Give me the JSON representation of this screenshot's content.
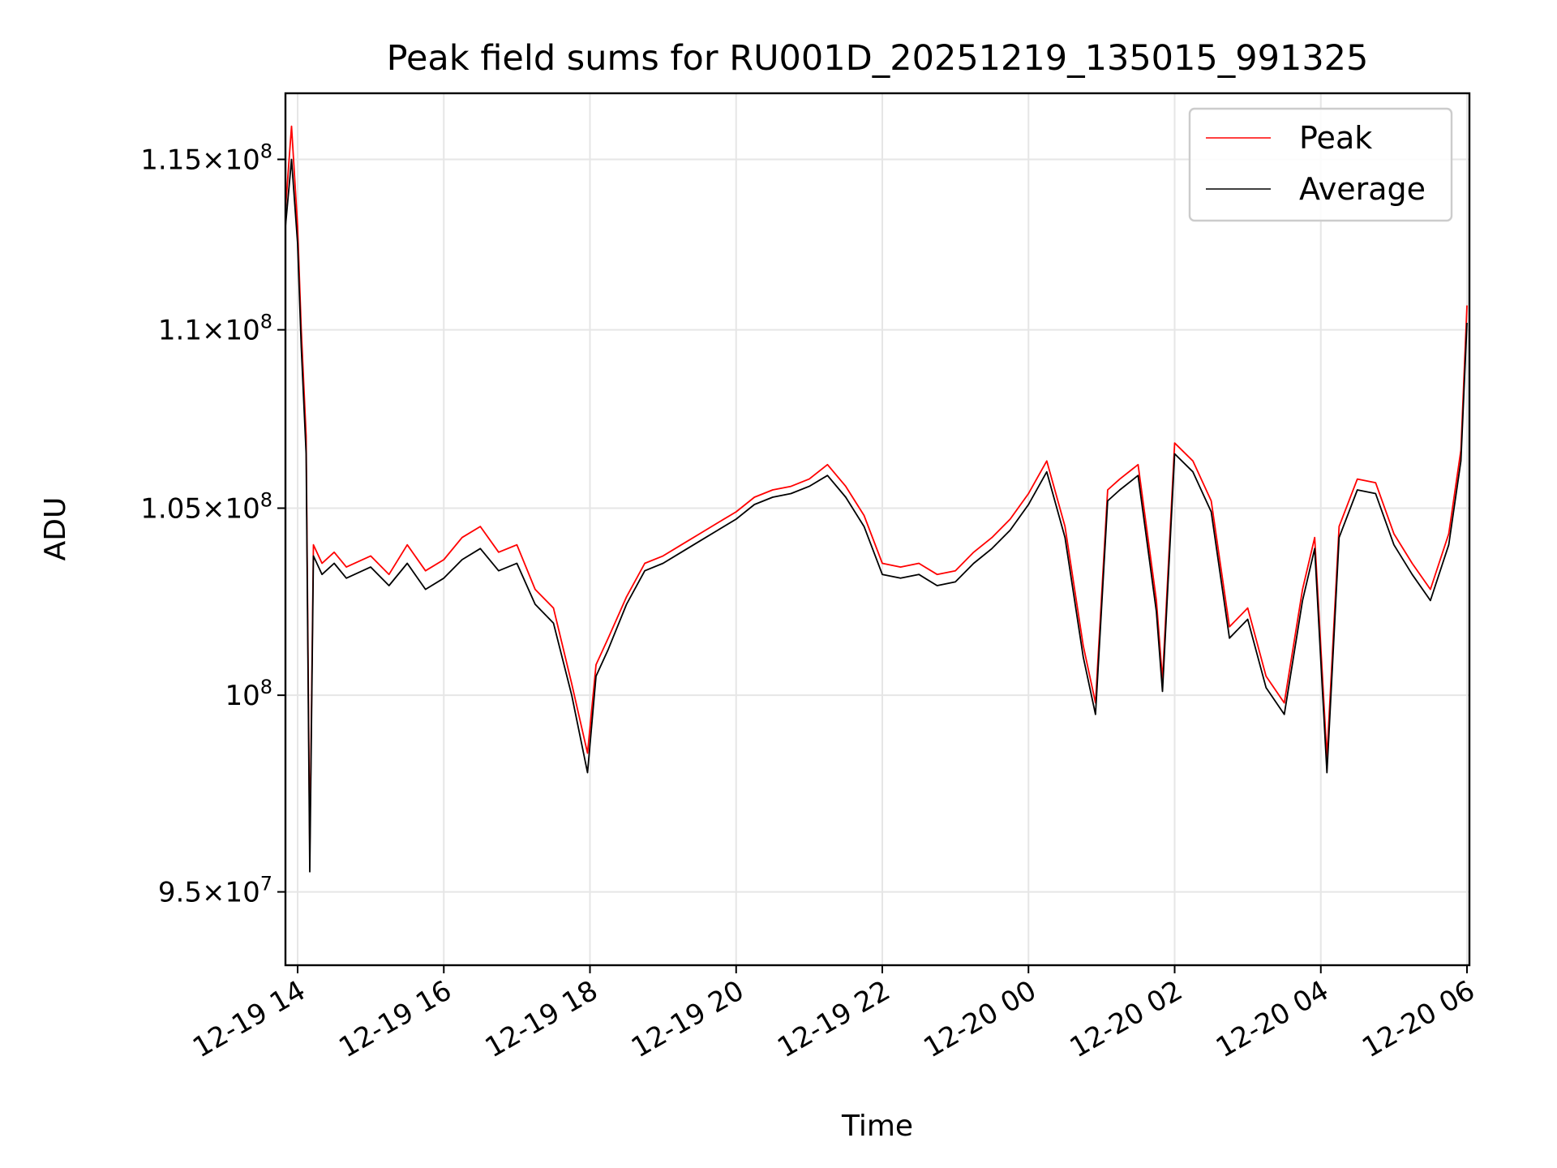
{
  "chart_data": {
    "type": "line",
    "title": "Peak field sums for RU001D_20251219_135015_991325",
    "xlabel": "Time",
    "ylabel": "ADU",
    "x_scale": "time",
    "y_scale": "log",
    "xlim": [
      "2025-12-19 13:50",
      "2025-12-20 06:02"
    ],
    "ylim": [
      93200000,
      117000000
    ],
    "grid": true,
    "legend_position": "top-right",
    "x_ticks": [
      {
        "value": "2025-12-19 14:00",
        "label": "12-19 14"
      },
      {
        "value": "2025-12-19 16:00",
        "label": "12-19 16"
      },
      {
        "value": "2025-12-19 18:00",
        "label": "12-19 18"
      },
      {
        "value": "2025-12-19 20:00",
        "label": "12-19 20"
      },
      {
        "value": "2025-12-19 22:00",
        "label": "12-19 22"
      },
      {
        "value": "2025-12-20 00:00",
        "label": "12-20 00"
      },
      {
        "value": "2025-12-20 02:00",
        "label": "12-20 02"
      },
      {
        "value": "2025-12-20 04:00",
        "label": "12-20 04"
      },
      {
        "value": "2025-12-20 06:00",
        "label": "12-20 06"
      }
    ],
    "y_ticks": [
      {
        "value": 95000000,
        "mant": "9.5",
        "exp": "7"
      },
      {
        "value": 100000000,
        "mant": "",
        "exp": "8"
      },
      {
        "value": 105000000,
        "mant": "1.05",
        "exp": "8"
      },
      {
        "value": 110000000,
        "mant": "1.1",
        "exp": "8"
      },
      {
        "value": 115000000,
        "mant": "1.15",
        "exp": "8"
      }
    ],
    "x": [
      "2025-12-19 13:50",
      "2025-12-19 13:55",
      "2025-12-19 14:00",
      "2025-12-19 14:03",
      "2025-12-19 14:07",
      "2025-12-19 14:10",
      "2025-12-19 14:13",
      "2025-12-19 14:20",
      "2025-12-19 14:30",
      "2025-12-19 14:40",
      "2025-12-19 15:00",
      "2025-12-19 15:15",
      "2025-12-19 15:30",
      "2025-12-19 15:45",
      "2025-12-19 16:00",
      "2025-12-19 16:15",
      "2025-12-19 16:30",
      "2025-12-19 16:45",
      "2025-12-19 17:00",
      "2025-12-19 17:15",
      "2025-12-19 17:30",
      "2025-12-19 17:45",
      "2025-12-19 17:58",
      "2025-12-19 18:05",
      "2025-12-19 18:15",
      "2025-12-19 18:30",
      "2025-12-19 18:45",
      "2025-12-19 19:00",
      "2025-12-19 19:15",
      "2025-12-19 19:30",
      "2025-12-19 19:45",
      "2025-12-19 20:00",
      "2025-12-19 20:15",
      "2025-12-19 20:30",
      "2025-12-19 20:45",
      "2025-12-19 21:00",
      "2025-12-19 21:15",
      "2025-12-19 21:30",
      "2025-12-19 21:45",
      "2025-12-19 22:00",
      "2025-12-19 22:15",
      "2025-12-19 22:30",
      "2025-12-19 22:45",
      "2025-12-19 23:00",
      "2025-12-19 23:15",
      "2025-12-19 23:30",
      "2025-12-19 23:45",
      "2025-12-20 00:00",
      "2025-12-20 00:15",
      "2025-12-20 00:30",
      "2025-12-20 00:45",
      "2025-12-20 00:55",
      "2025-12-20 01:05",
      "2025-12-20 01:15",
      "2025-12-20 01:30",
      "2025-12-20 01:45",
      "2025-12-20 01:50",
      "2025-12-20 02:00",
      "2025-12-20 02:15",
      "2025-12-20 02:30",
      "2025-12-20 02:45",
      "2025-12-20 03:00",
      "2025-12-20 03:15",
      "2025-12-20 03:30",
      "2025-12-20 03:45",
      "2025-12-20 03:55",
      "2025-12-20 04:05",
      "2025-12-20 04:15",
      "2025-12-20 04:30",
      "2025-12-20 04:45",
      "2025-12-20 05:00",
      "2025-12-20 05:15",
      "2025-12-20 05:30",
      "2025-12-20 05:45",
      "2025-12-20 05:55",
      "2025-12-20 06:00"
    ],
    "series": [
      {
        "name": "Peak",
        "color": "#ff0000",
        "values": [
          113500000,
          116000000,
          113000000,
          110000000,
          107000000,
          96000000,
          104000000,
          103500000,
          103800000,
          103400000,
          103700000,
          103200000,
          104000000,
          103300000,
          103600000,
          104200000,
          104500000,
          103800000,
          104000000,
          102800000,
          102300000,
          100300000,
          98500000,
          100800000,
          101500000,
          102600000,
          103500000,
          103700000,
          104000000,
          104300000,
          104600000,
          104900000,
          105300000,
          105500000,
          105600000,
          105800000,
          106200000,
          105600000,
          104800000,
          103500000,
          103400000,
          103500000,
          103200000,
          103300000,
          103800000,
          104200000,
          104700000,
          105400000,
          106300000,
          104500000,
          101300000,
          99800000,
          105500000,
          105800000,
          106200000,
          102500000,
          100400000,
          106800000,
          106300000,
          105200000,
          101800000,
          102300000,
          100500000,
          99800000,
          102800000,
          104200000,
          98400000,
          104500000,
          105800000,
          105700000,
          104300000,
          103500000,
          102800000,
          104300000,
          106600000,
          110700000
        ]
      },
      {
        "name": "Average",
        "color": "#000000",
        "values": [
          113000000,
          115000000,
          112500000,
          109500000,
          106500000,
          95500000,
          103700000,
          103200000,
          103500000,
          103100000,
          103400000,
          102900000,
          103500000,
          102800000,
          103100000,
          103600000,
          103900000,
          103300000,
          103500000,
          102400000,
          101900000,
          100000000,
          98000000,
          100500000,
          101200000,
          102400000,
          103300000,
          103500000,
          103800000,
          104100000,
          104400000,
          104700000,
          105100000,
          105300000,
          105400000,
          105600000,
          105900000,
          105300000,
          104500000,
          103200000,
          103100000,
          103200000,
          102900000,
          103000000,
          103500000,
          103900000,
          104400000,
          105100000,
          106000000,
          104200000,
          101000000,
          99500000,
          105200000,
          105500000,
          105900000,
          102200000,
          100100000,
          106500000,
          106000000,
          104900000,
          101500000,
          102000000,
          100200000,
          99500000,
          102500000,
          103900000,
          98000000,
          104200000,
          105500000,
          105400000,
          104000000,
          103200000,
          102500000,
          104000000,
          106300000,
          110200000
        ]
      }
    ]
  }
}
